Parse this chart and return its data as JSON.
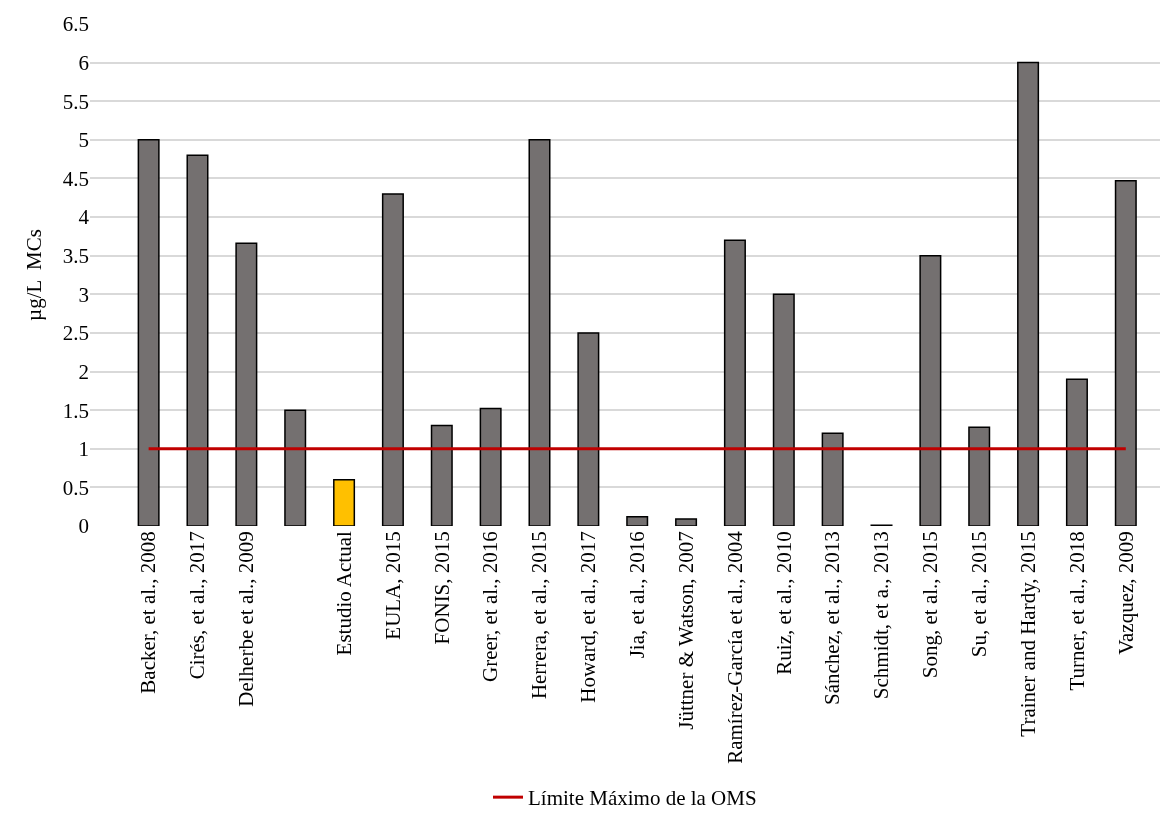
{
  "chart_data": {
    "type": "bar",
    "ylabel": "µg/L  MCs",
    "categories": [
      "Backer, et al., 2008",
      "Cirés, et al., 2017",
      "Delherbe et al., 2009",
      null,
      "Estudio Actual",
      "EULA, 2015",
      "FONIS, 2015",
      "Greer, et al., 2016",
      "Herrera, et al., 2015",
      "Howard, et al., 2017",
      "Jia, et al., 2016",
      "Jüttner & Watson, 2007",
      "Ramírez-García et al., 2004",
      "Ruiz, et al., 2010",
      "Sánchez, et al., 2013",
      "Schmidt, et a., 2013",
      "Song, et al., 2015",
      "Su, et al., 2015",
      "Trainer and Hardy, 2015",
      "Turner, et al., 2018",
      "Vazquez, 2009"
    ],
    "series": [
      {
        "values": [
          5,
          4.8,
          3.66,
          1.5,
          0.6,
          4.3,
          1.3,
          1.52,
          5,
          2.5,
          0.12,
          0.09,
          3.7,
          3.0,
          1.2,
          0.01,
          3.5,
          1.28,
          6,
          1.9,
          4.47
        ],
        "colors": [
          "#747070",
          "#747070",
          "#747070",
          "#747070",
          "#ffc000",
          "#747070",
          "#747070",
          "#747070",
          "#747070",
          "#747070",
          "#747070",
          "#747070",
          "#747070",
          "#747070",
          "#747070",
          "#747070",
          "#747070",
          "#747070",
          "#747070",
          "#747070",
          "#747070"
        ]
      },
      {
        "type": "line",
        "name": "Límite Máximo de la OMS",
        "color": "#c00000",
        "values": [
          1,
          1,
          1,
          1,
          1,
          1,
          1,
          1,
          1,
          1,
          1,
          1,
          1,
          1,
          1,
          1,
          1,
          1,
          1,
          1,
          1
        ]
      }
    ],
    "ylim": [
      0,
      6.5
    ],
    "yticks": [
      0,
      0.5,
      1,
      1.5,
      2,
      2.5,
      3,
      3.5,
      4,
      4.5,
      5,
      5.5,
      6,
      6.5
    ],
    "grid": "y",
    "legend": "bottom",
    "marker": "none",
    "line_style": "solid"
  }
}
